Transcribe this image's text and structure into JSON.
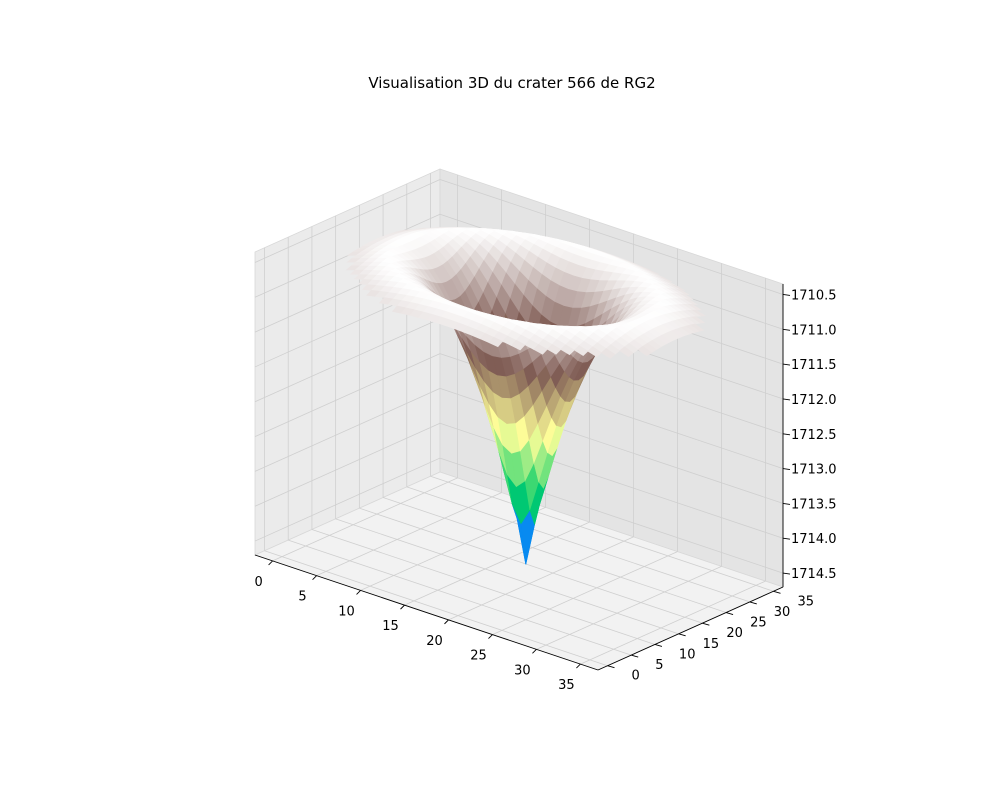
{
  "chart_data": {
    "type": "surface3d",
    "title": "Visualisation 3D du crater 566 de RG2",
    "xlabel": "",
    "ylabel": "",
    "zlabel": "",
    "x_ticks": [
      "0",
      "5",
      "10",
      "15",
      "20",
      "25",
      "30",
      "35"
    ],
    "y_ticks": [
      "0",
      "5",
      "10",
      "15",
      "20",
      "25",
      "30",
      "35"
    ],
    "z_ticks": [
      "1710.5",
      "1711.0",
      "1711.5",
      "1712.0",
      "1712.5",
      "1713.0",
      "1713.5",
      "1714.0",
      "1714.5"
    ],
    "xlim": [
      -2,
      37
    ],
    "ylim": [
      -2,
      37
    ],
    "zlim": [
      1710.35,
      1714.7
    ],
    "z_axis_inverted": true,
    "grid": true,
    "colormap": "terrain",
    "surface": {
      "center": [
        18,
        18
      ],
      "rim_radius": 14,
      "rim_depth": 1710.5,
      "floor_depth": 1714.6,
      "outer_depth": 1711.0
    }
  }
}
